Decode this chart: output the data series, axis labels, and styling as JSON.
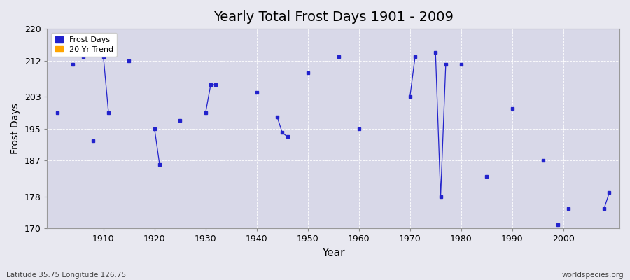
{
  "title": "Yearly Total Frost Days 1901 - 2009",
  "xlabel": "Year",
  "ylabel": "Frost Days",
  "footer_left": "Latitude 35.75 Longitude 126.75",
  "footer_right": "worldspecies.org",
  "legend_entries": [
    "Frost Days",
    "20 Yr Trend"
  ],
  "legend_colors": [
    "#2222cc",
    "#FFA500"
  ],
  "line_color": "#2222cc",
  "ylim": [
    170,
    220
  ],
  "yticks": [
    170,
    178,
    187,
    195,
    203,
    212,
    220
  ],
  "bg_color": "#e8e8f0",
  "plot_bg_color": "#d8d8e8",
  "xlim": [
    1899,
    2011
  ],
  "years": [
    1901,
    1902,
    1903,
    1904,
    1905,
    1906,
    1907,
    1908,
    1909,
    1910,
    1911,
    1912,
    1913,
    1914,
    1915,
    1916,
    1917,
    1918,
    1919,
    1920,
    1921,
    1922,
    1923,
    1924,
    1925,
    1926,
    1927,
    1928,
    1929,
    1930,
    1931,
    1932,
    1933,
    1934,
    1935,
    1936,
    1937,
    1938,
    1939,
    1940,
    1941,
    1942,
    1943,
    1944,
    1945,
    1946,
    1947,
    1948,
    1949,
    1950,
    1951,
    1952,
    1953,
    1954,
    1955,
    1956,
    1957,
    1958,
    1959,
    1960,
    1961,
    1962,
    1963,
    1964,
    1965,
    1966,
    1967,
    1968,
    1969,
    1970,
    1971,
    1972,
    1973,
    1974,
    1975,
    1976,
    1977,
    1978,
    1979,
    1980,
    1981,
    1982,
    1983,
    1984,
    1985,
    1986,
    1987,
    1988,
    1989,
    1990,
    1991,
    1992,
    1993,
    1994,
    1995,
    1996,
    1997,
    1998,
    1999,
    2000,
    2001,
    2002,
    2003,
    2004,
    2005,
    2006,
    2007,
    2008,
    2009
  ],
  "values": [
    199,
    null,
    null,
    211,
    null,
    213,
    null,
    192,
    null,
    213,
    199,
    null,
    null,
    null,
    212,
    null,
    null,
    null,
    null,
    195,
    186,
    null,
    null,
    null,
    197,
    null,
    null,
    null,
    null,
    199,
    206,
    206,
    null,
    null,
    null,
    null,
    null,
    null,
    null,
    204,
    null,
    null,
    null,
    198,
    194,
    193,
    null,
    null,
    null,
    209,
    null,
    null,
    null,
    null,
    null,
    213,
    null,
    null,
    null,
    195,
    null,
    null,
    null,
    null,
    null,
    null,
    null,
    null,
    null,
    203,
    213,
    null,
    null,
    null,
    214,
    178,
    211,
    null,
    null,
    211,
    null,
    null,
    null,
    null,
    183,
    null,
    null,
    null,
    null,
    200,
    null,
    null,
    null,
    null,
    null,
    187,
    null,
    null,
    171,
    null,
    175,
    null,
    null,
    null,
    null,
    null,
    null,
    175,
    179
  ]
}
